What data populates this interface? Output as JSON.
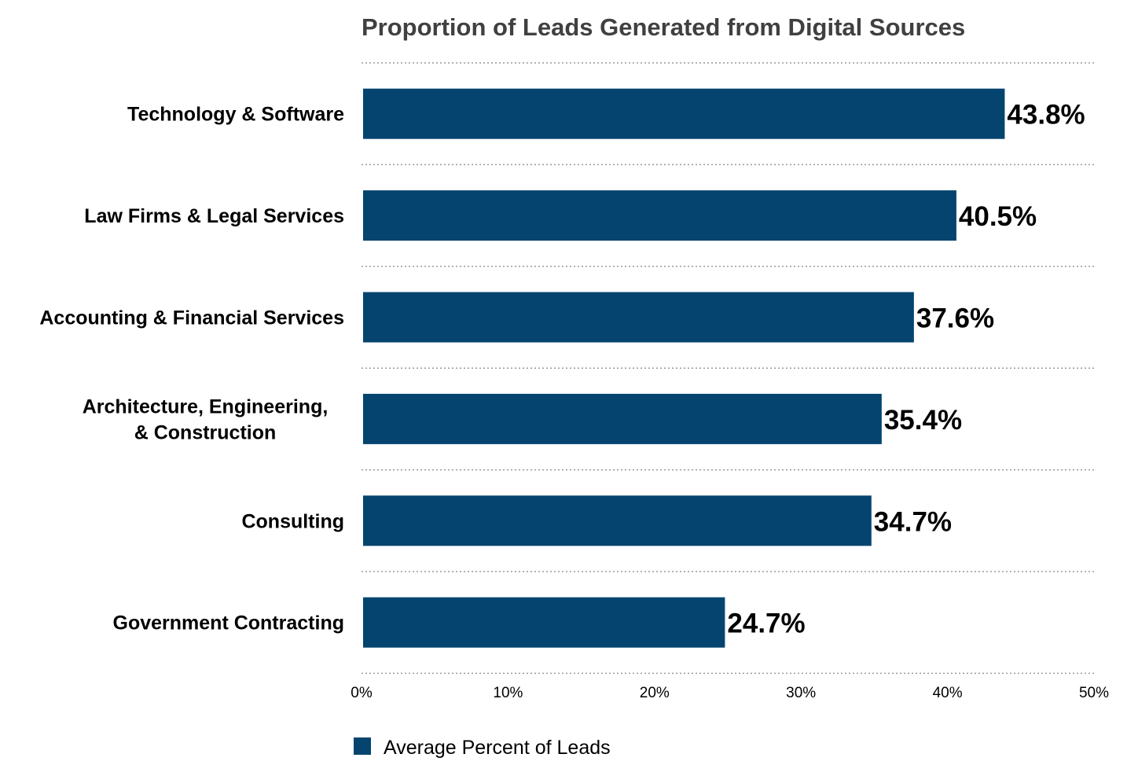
{
  "chart_data": {
    "type": "bar",
    "orientation": "horizontal",
    "title": "Proportion of Leads Generated from Digital Sources",
    "categories": [
      [
        "Technology & Software"
      ],
      [
        "Law Firms & Legal Services"
      ],
      [
        "Accounting & Financial Services"
      ],
      [
        "Architecture, Engineering,",
        "& Construction"
      ],
      [
        "Consulting"
      ],
      [
        "Government Contracting"
      ]
    ],
    "series": [
      {
        "name": "Average Percent of Leads",
        "values": [
          43.8,
          40.5,
          37.6,
          35.4,
          34.7,
          24.7
        ],
        "data_labels": [
          "43.8%",
          "40.5%",
          "37.6%",
          "35.4%",
          "34.7%",
          "24.7%"
        ]
      }
    ],
    "xlim": [
      0,
      50
    ],
    "x_ticks": [
      "0%",
      "10%",
      "20%",
      "30%",
      "40%",
      "50%"
    ],
    "xlabel": "",
    "ylabel": "",
    "grid": "horizontal dotted separators",
    "legend_position": "bottom-left",
    "colors": {
      "bar": "#04446f",
      "title": "#404040",
      "text": "#000000",
      "grid": "#999999"
    }
  }
}
